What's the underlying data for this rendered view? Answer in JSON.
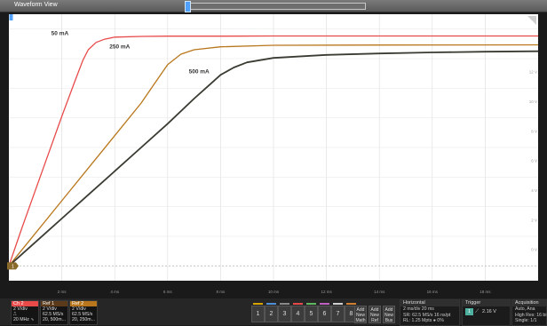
{
  "window": {
    "title": "Waveform View"
  },
  "plot": {
    "background": "#ffffff",
    "x_ticks": [
      "2 ms",
      "4 ms",
      "6 ms",
      "8 ms",
      "10 ms",
      "12 ms",
      "14 ms",
      "16 ms",
      "18 ms"
    ],
    "y_ticks": [
      "12 V",
      "10 V",
      "8 V",
      "6 V",
      "4 V",
      "2 V",
      "0 V"
    ],
    "trigger_marker": "1",
    "corner_marker": "T"
  },
  "chart_data": {
    "type": "line",
    "title": "",
    "xlabel": "",
    "ylabel": "",
    "x_unit": "ms",
    "y_unit": "V",
    "xlim": [
      0,
      20
    ],
    "ylim": [
      -1,
      17
    ],
    "grid": true,
    "series": [
      {
        "name": "50 mA",
        "color": "#e84a4a",
        "x": [
          0,
          0.5,
          1,
          1.5,
          2,
          2.5,
          2.8,
          3,
          3.3,
          3.6,
          4,
          5,
          6,
          8,
          10,
          14,
          20
        ],
        "y": [
          0,
          2.6,
          5.1,
          7.6,
          10.1,
          12.5,
          13.9,
          14.6,
          15.1,
          15.3,
          15.45,
          15.5,
          15.52,
          15.52,
          15.53,
          15.53,
          15.53
        ]
      },
      {
        "name": "250 mA",
        "color": "#b8771c",
        "x": [
          0,
          1,
          2,
          3,
          4,
          5,
          5.5,
          6,
          6.5,
          7,
          8,
          10,
          14,
          20
        ],
        "y": [
          0,
          2.2,
          4.4,
          6.6,
          8.8,
          11,
          12.3,
          13.6,
          14.3,
          14.6,
          14.8,
          14.9,
          14.92,
          14.93
        ]
      },
      {
        "name": "500 mA",
        "color": "#3b3b33",
        "x": [
          0,
          1,
          2,
          3,
          4,
          5,
          6,
          7,
          7.5,
          8,
          8.5,
          9,
          10,
          12,
          14,
          16,
          18,
          20
        ],
        "y": [
          0,
          1.6,
          3.2,
          4.8,
          6.4,
          8,
          9.6,
          11.3,
          12.1,
          12.9,
          13.4,
          13.75,
          14.05,
          14.25,
          14.35,
          14.42,
          14.47,
          14.5
        ]
      }
    ],
    "annotations": [
      "50 mA",
      "250 mA",
      "500 mA"
    ]
  },
  "bottombar": {
    "ch2": {
      "head": "Ch 2",
      "lines": [
        "2 V/div",
        "⎍",
        "20 MHz ∿"
      ],
      "color": "#e84a4a"
    },
    "ref1": {
      "head": "Ref 1",
      "lines": [
        "2 V/div",
        "62.5 MS/s",
        "20, 500m..."
      ],
      "color": "#8a5a2a"
    },
    "ref2": {
      "head": "Ref 2",
      "lines": [
        "2 V/div",
        "62.5 MS/s",
        "20, 250m..."
      ],
      "color": "#b8771c"
    },
    "num_buttons": [
      "1",
      "2",
      "3",
      "4",
      "5",
      "6",
      "7",
      "8"
    ],
    "add_buttons": [
      [
        "Add",
        "New",
        "Math"
      ],
      [
        "Add",
        "New",
        "Ref"
      ],
      [
        "Add",
        "New",
        "Bus"
      ]
    ],
    "horizontal": {
      "title": "Horizontal",
      "lines": [
        "2 ms/div       20 ms",
        "SR: 62.5 MS/s   16 ns/pt",
        "RL: 1.25 Mpts   ● 0%"
      ]
    },
    "trigger": {
      "title": "Trigger",
      "channel": "1",
      "value": "2.16 V"
    },
    "acquisition": {
      "title": "Acquisition",
      "lines": [
        "Auto,           Ana",
        "High Res: 16 bi",
        "Single: 1/1"
      ]
    }
  }
}
